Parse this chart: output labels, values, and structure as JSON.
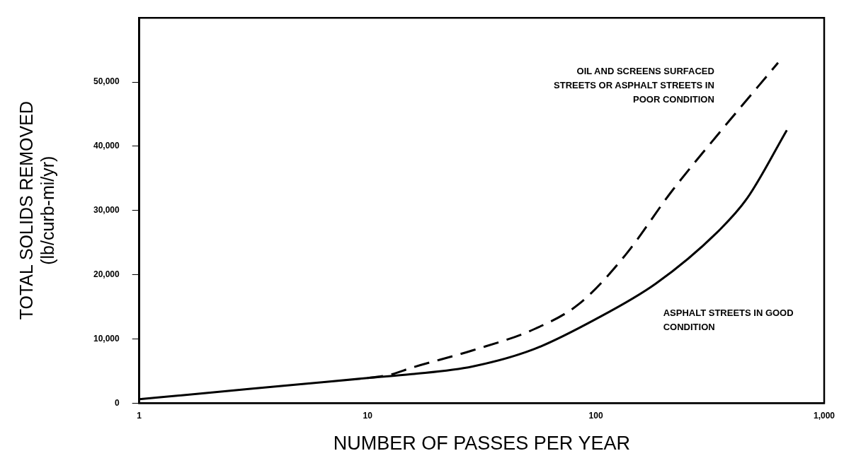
{
  "chart_data": {
    "type": "line",
    "xlabel": "NUMBER OF PASSES PER YEAR",
    "ylabel": "TOTAL SOLIDS REMOVED\n(lb/curb-mi/yr)",
    "log": "x",
    "xlim": [
      1,
      1000
    ],
    "ylim": [
      0,
      60000
    ],
    "xticks": [
      1,
      10,
      100,
      {
        "value": 1000,
        "label": "1,000"
      }
    ],
    "yticks": [
      0,
      {
        "value": 10000,
        "label": "10,000"
      },
      {
        "value": 20000,
        "label": "20,000"
      },
      {
        "value": 30000,
        "label": "30,000"
      },
      {
        "value": 40000,
        "label": "40,000"
      },
      {
        "value": 50000,
        "label": "50,000"
      }
    ],
    "grid": false,
    "legend": false,
    "marker": "none",
    "series": [
      {
        "name": "ASPHALT STREETS IN GOOD CONDITION",
        "color": "#000000",
        "line_style": "solid",
        "x": [
          1,
          2,
          5,
          10,
          15.6,
          28.8,
          53.6,
          99,
          183,
          340,
          460,
          686
        ],
        "values": [
          600,
          1600,
          2900,
          3900,
          4500,
          5700,
          8400,
          13000,
          18600,
          26600,
          31900,
          42500
        ]
      },
      {
        "name": "OIL AND SCREENS SURFACED STREETS OR ASPHALT STREETS IN POOR CONDITION",
        "color": "#000000",
        "line_style": "dashed",
        "x": [
          10,
          12.5,
          15.6,
          28.8,
          53.6,
          84.8,
          135,
          213,
          340,
          628
        ],
        "values": [
          3900,
          4400,
          5500,
          8200,
          11500,
          15500,
          23100,
          32800,
          41700,
          53000
        ]
      }
    ]
  }
}
